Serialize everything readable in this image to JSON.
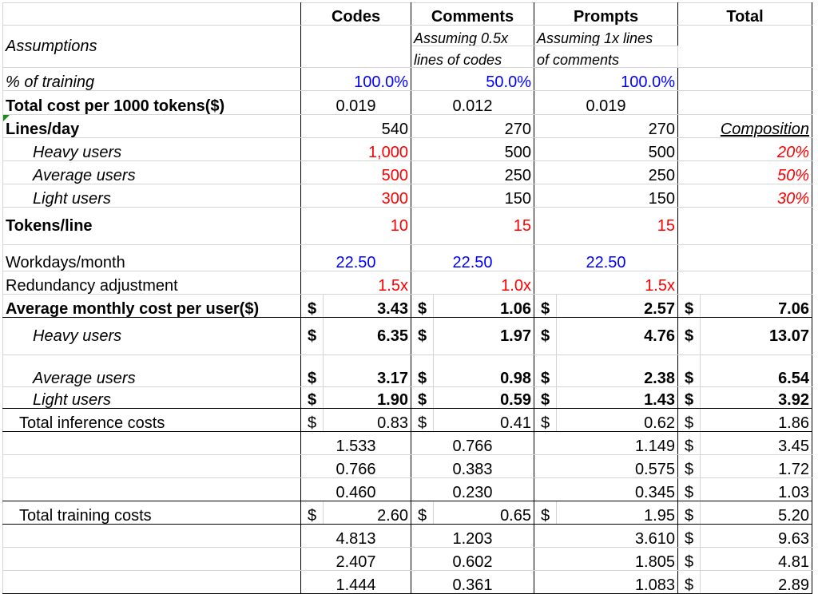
{
  "header": {
    "col1": "Codes",
    "col2": "Comments",
    "col3": "Prompts",
    "col4": "Total"
  },
  "assumptions": {
    "label": "Assumptions",
    "comments_note_1": "Assuming 0.5x",
    "comments_note_2": "lines of codes",
    "prompts_note_1": "Assuming 1x lines",
    "prompts_note_2": "of comments"
  },
  "training_pct": {
    "label": "% of training",
    "codes": "100.0%",
    "comments": "50.0%",
    "prompts": "100.0%"
  },
  "cost_per_1000": {
    "label": "Total cost per 1000 tokens($)",
    "codes": "0.019",
    "comments": "0.012",
    "prompts": "0.019"
  },
  "lines_day": {
    "label": "Lines/day",
    "codes": "540",
    "comments": "270",
    "prompts": "270",
    "composition": "Composition"
  },
  "heavy": {
    "label": "Heavy users",
    "codes": "1,000",
    "comments": "500",
    "prompts": "500",
    "composition": "20%"
  },
  "average": {
    "label": "Average users",
    "codes": "500",
    "comments": "250",
    "prompts": "250",
    "composition": "50%"
  },
  "light": {
    "label": "Light users",
    "codes": "300",
    "comments": "150",
    "prompts": "150",
    "composition": "30%"
  },
  "tokens_line": {
    "label": "Tokens/line",
    "codes": "10",
    "comments": "15",
    "prompts": "15"
  },
  "workdays": {
    "label": "Workdays/month",
    "codes": "22.50",
    "comments": "22.50",
    "prompts": "22.50"
  },
  "redundancy": {
    "label": "Redundancy adjustment",
    "codes": "1.5x",
    "comments": "1.0x",
    "prompts": "1.5x"
  },
  "currency": "$",
  "avg_monthly": {
    "label": "Average monthly cost per user($)",
    "codes": "3.43",
    "comments": "1.06",
    "prompts": "2.57",
    "total": "7.06"
  },
  "avg_heavy": {
    "label": "Heavy users",
    "codes": "6.35",
    "comments": "1.97",
    "prompts": "4.76",
    "total": "13.07"
  },
  "avg_average": {
    "label": "Average users",
    "codes": "3.17",
    "comments": "0.98",
    "prompts": "2.38",
    "total": "6.54"
  },
  "avg_light": {
    "label": "Light users",
    "codes": "1.90",
    "comments": "0.59",
    "prompts": "1.43",
    "total": "3.92"
  },
  "inference": {
    "label": "Total inference costs",
    "total_row": {
      "codes": "0.83",
      "comments": "0.41",
      "prompts": "0.62",
      "total": "1.86"
    },
    "rows": [
      {
        "codes": "1.533",
        "comments": "0.766",
        "prompts": "1.149",
        "total": "3.45"
      },
      {
        "codes": "0.766",
        "comments": "0.383",
        "prompts": "0.575",
        "total": "1.72"
      },
      {
        "codes": "0.460",
        "comments": "0.230",
        "prompts": "0.345",
        "total": "1.03"
      }
    ]
  },
  "training": {
    "label": "Total training costs",
    "total_row": {
      "codes": "2.60",
      "comments": "0.65",
      "prompts": "1.95",
      "total": "5.20"
    },
    "rows": [
      {
        "codes": "4.813",
        "comments": "1.203",
        "prompts": "3.610",
        "total": "9.63"
      },
      {
        "codes": "2.407",
        "comments": "0.602",
        "prompts": "1.805",
        "total": "4.81"
      },
      {
        "codes": "1.444",
        "comments": "0.361",
        "prompts": "1.083",
        "total": "2.89"
      }
    ]
  }
}
